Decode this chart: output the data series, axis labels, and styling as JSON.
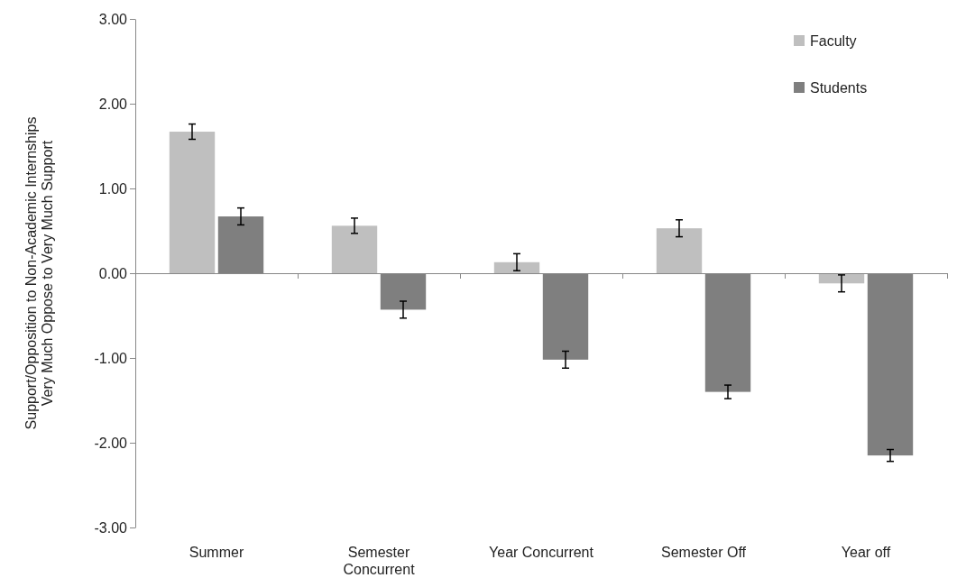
{
  "chart_data": {
    "type": "bar",
    "ylabel": "Support/Opposition  to Non-Academic  Internships\nVery Much Oppose to Very Much Support",
    "categories": [
      "Summer",
      "Semester Concurrent",
      "Year Concurrent",
      "Semester Off",
      "Year off"
    ],
    "series": [
      {
        "name": "Faculty",
        "color": "#bfbfbf",
        "values": [
          1.67,
          0.56,
          0.13,
          0.53,
          -0.12
        ],
        "errors": [
          0.09,
          0.09,
          0.1,
          0.1,
          0.1
        ]
      },
      {
        "name": "Students",
        "color": "#7f7f7f",
        "values": [
          0.67,
          -0.43,
          -1.02,
          -1.4,
          -2.15
        ],
        "errors": [
          0.1,
          0.1,
          0.1,
          0.08,
          0.07
        ]
      }
    ],
    "ylim": [
      -3,
      3
    ],
    "yticks": [
      {
        "value": -3,
        "label": "-3.00"
      },
      {
        "value": -2,
        "label": "-2.00"
      },
      {
        "value": -1,
        "label": "-1.00"
      },
      {
        "value": 0,
        "label": "0.00"
      },
      {
        "value": 1,
        "label": "1.00"
      },
      {
        "value": 2,
        "label": "2.00"
      },
      {
        "value": 3,
        "label": "3.00"
      }
    ],
    "legend": "top right"
  }
}
